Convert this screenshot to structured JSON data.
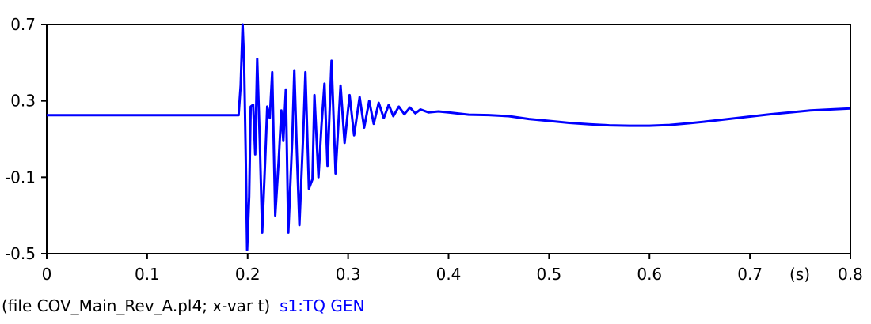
{
  "chart_data": {
    "type": "line",
    "xlabel": "(s)",
    "xlim": [
      0,
      0.8
    ],
    "ylim": [
      -0.5,
      0.7
    ],
    "x_ticks": [
      "0",
      "0.1",
      "0.2",
      "0.3",
      "0.4",
      "0.5",
      "0.6",
      "0.7",
      "0.8"
    ],
    "y_ticks": [
      "0.7",
      "0.3",
      "-0.1",
      "-0.5"
    ],
    "grid": false,
    "series": [
      {
        "name": "s1:TQ GEN",
        "color": "#0000ff",
        "points": [
          [
            0.0,
            0.225
          ],
          [
            0.19,
            0.225
          ],
          [
            0.191,
            0.225
          ],
          [
            0.193,
            0.38
          ],
          [
            0.195,
            0.7
          ],
          [
            0.1965,
            0.5
          ],
          [
            0.198,
            0.05
          ],
          [
            0.1995,
            -0.48
          ],
          [
            0.2015,
            -0.2
          ],
          [
            0.203,
            0.27
          ],
          [
            0.2055,
            0.28
          ],
          [
            0.2075,
            0.02
          ],
          [
            0.2095,
            0.52
          ],
          [
            0.212,
            0.1
          ],
          [
            0.2145,
            -0.39
          ],
          [
            0.2175,
            0.0
          ],
          [
            0.2195,
            0.27
          ],
          [
            0.222,
            0.21
          ],
          [
            0.2245,
            0.45
          ],
          [
            0.2275,
            -0.3
          ],
          [
            0.231,
            0.0
          ],
          [
            0.2335,
            0.25
          ],
          [
            0.2355,
            0.09
          ],
          [
            0.238,
            0.36
          ],
          [
            0.2405,
            -0.39
          ],
          [
            0.2445,
            0.11
          ],
          [
            0.2465,
            0.46
          ],
          [
            0.249,
            0.03
          ],
          [
            0.2515,
            -0.35
          ],
          [
            0.2555,
            0.15
          ],
          [
            0.2575,
            0.45
          ],
          [
            0.261,
            -0.16
          ],
          [
            0.2645,
            -0.11
          ],
          [
            0.2665,
            0.33
          ],
          [
            0.2705,
            -0.1
          ],
          [
            0.2735,
            0.17
          ],
          [
            0.2765,
            0.39
          ],
          [
            0.2795,
            -0.04
          ],
          [
            0.2835,
            0.51
          ],
          [
            0.2875,
            -0.08
          ],
          [
            0.2925,
            0.38
          ],
          [
            0.2965,
            0.08
          ],
          [
            0.3015,
            0.33
          ],
          [
            0.306,
            0.12
          ],
          [
            0.3115,
            0.32
          ],
          [
            0.316,
            0.16
          ],
          [
            0.321,
            0.3
          ],
          [
            0.3255,
            0.18
          ],
          [
            0.3305,
            0.29
          ],
          [
            0.3355,
            0.21
          ],
          [
            0.3405,
            0.28
          ],
          [
            0.345,
            0.22
          ],
          [
            0.3505,
            0.27
          ],
          [
            0.356,
            0.23
          ],
          [
            0.3615,
            0.265
          ],
          [
            0.367,
            0.235
          ],
          [
            0.372,
            0.255
          ],
          [
            0.38,
            0.24
          ],
          [
            0.39,
            0.245
          ],
          [
            0.4,
            0.24
          ],
          [
            0.42,
            0.228
          ],
          [
            0.44,
            0.226
          ],
          [
            0.46,
            0.22
          ],
          [
            0.48,
            0.205
          ],
          [
            0.5,
            0.195
          ],
          [
            0.52,
            0.185
          ],
          [
            0.54,
            0.178
          ],
          [
            0.56,
            0.172
          ],
          [
            0.58,
            0.17
          ],
          [
            0.6,
            0.17
          ],
          [
            0.62,
            0.174
          ],
          [
            0.64,
            0.183
          ],
          [
            0.66,
            0.194
          ],
          [
            0.68,
            0.206
          ],
          [
            0.7,
            0.218
          ],
          [
            0.72,
            0.23
          ],
          [
            0.74,
            0.24
          ],
          [
            0.76,
            0.25
          ],
          [
            0.78,
            0.255
          ],
          [
            0.8,
            0.26
          ]
        ]
      }
    ]
  },
  "footer": {
    "file_text": "(file COV_Main_Rev_A.pl4; x-var t)",
    "series_text": "s1:TQ GEN"
  }
}
